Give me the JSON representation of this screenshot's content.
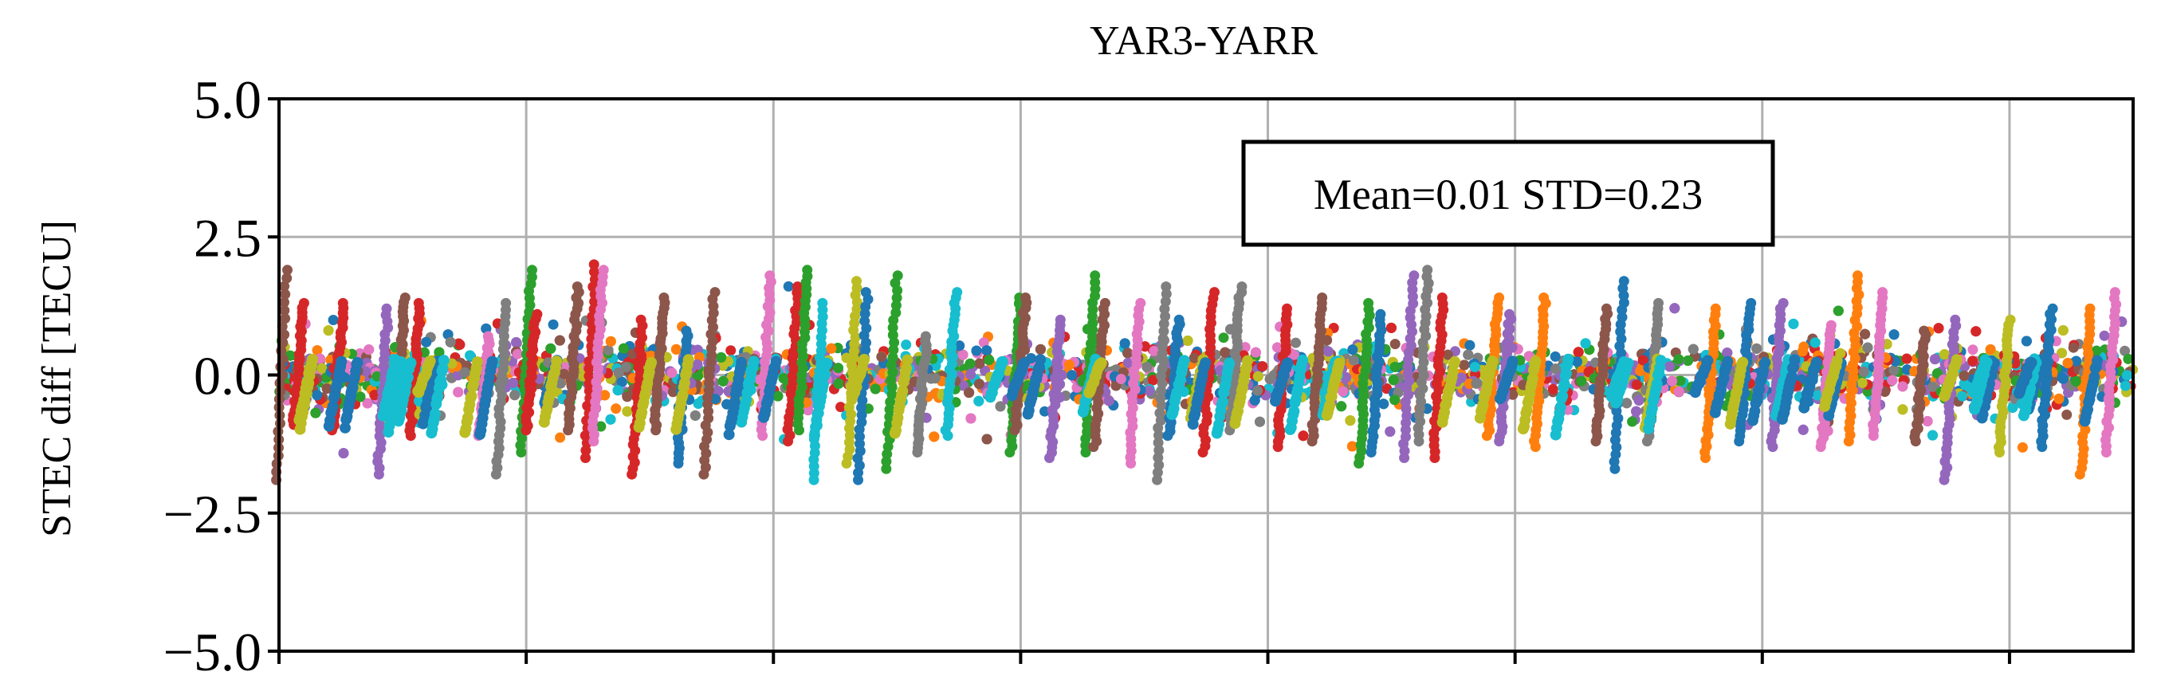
{
  "chart_data": {
    "type": "scatter",
    "title": "YAR3-YARR",
    "xlabel": "",
    "ylabel": "STEC diff [TECU]",
    "ylim": [
      -5.0,
      5.0
    ],
    "yticks": [
      5.0,
      2.5,
      0.0,
      -2.5,
      -5.0
    ],
    "ytick_labels": [
      "5.0",
      "2.5",
      "0.0",
      "−2.5",
      "−5.0"
    ],
    "xlim": [
      0,
      7.5
    ],
    "xticks": [
      0,
      1,
      2,
      3,
      4,
      5,
      6,
      7
    ],
    "xtick_labels": [
      "",
      "",
      "",
      "",
      "",
      "",
      "",
      ""
    ],
    "grid": true,
    "annotation": "Mean=0.01 STD=0.23",
    "annotation_placement": "upper-right",
    "series_colors": [
      "#1f77b4",
      "#ff7f0e",
      "#2ca02c",
      "#d62728",
      "#9467bd",
      "#8c564b",
      "#e377c2",
      "#7f7f7f",
      "#bcbd22",
      "#17becf"
    ],
    "series_note": "",
    "spikes": [
      {
        "x": 0.01,
        "lo": -1.9,
        "hi": 1.9,
        "color": "#8c564b"
      },
      {
        "x": 0.08,
        "lo": -0.9,
        "hi": 1.3,
        "color": "#d62728"
      },
      {
        "x": 0.24,
        "lo": -1.0,
        "hi": 1.3,
        "color": "#d62728"
      },
      {
        "x": 0.42,
        "lo": -1.8,
        "hi": 1.2,
        "color": "#9467bd"
      },
      {
        "x": 0.49,
        "lo": -0.8,
        "hi": 1.4,
        "color": "#8c564b"
      },
      {
        "x": 0.55,
        "lo": -1.1,
        "hi": 1.3,
        "color": "#d62728"
      },
      {
        "x": 0.83,
        "lo": -1.1,
        "hi": 0.7,
        "color": "#e377c2"
      },
      {
        "x": 0.9,
        "lo": -1.8,
        "hi": 1.3,
        "color": "#7f7f7f"
      },
      {
        "x": 1.0,
        "lo": -1.4,
        "hi": 1.9,
        "color": "#2ca02c"
      },
      {
        "x": 1.02,
        "lo": -1.0,
        "hi": 1.1,
        "color": "#d62728"
      },
      {
        "x": 1.19,
        "lo": -1.0,
        "hi": 1.6,
        "color": "#8c564b"
      },
      {
        "x": 1.26,
        "lo": -1.5,
        "hi": 2.0,
        "color": "#d62728"
      },
      {
        "x": 1.29,
        "lo": -1.2,
        "hi": 1.9,
        "color": "#e377c2"
      },
      {
        "x": 1.45,
        "lo": -1.8,
        "hi": 1.0,
        "color": "#d62728"
      },
      {
        "x": 1.54,
        "lo": -1.0,
        "hi": 1.4,
        "color": "#8c564b"
      },
      {
        "x": 1.63,
        "lo": -1.6,
        "hi": 0.8,
        "color": "#1f77b4"
      },
      {
        "x": 1.74,
        "lo": -1.8,
        "hi": 1.5,
        "color": "#8c564b"
      },
      {
        "x": 1.97,
        "lo": -1.1,
        "hi": 1.8,
        "color": "#e377c2"
      },
      {
        "x": 2.08,
        "lo": -1.2,
        "hi": 1.6,
        "color": "#d62728"
      },
      {
        "x": 2.12,
        "lo": -1.0,
        "hi": 1.9,
        "color": "#2ca02c"
      },
      {
        "x": 2.18,
        "lo": -1.9,
        "hi": 1.3,
        "color": "#17becf"
      },
      {
        "x": 2.32,
        "lo": -1.6,
        "hi": 1.7,
        "color": "#bcbd22"
      },
      {
        "x": 2.36,
        "lo": -1.9,
        "hi": 1.5,
        "color": "#1f77b4"
      },
      {
        "x": 2.48,
        "lo": -1.7,
        "hi": 1.8,
        "color": "#2ca02c"
      },
      {
        "x": 2.6,
        "lo": -1.4,
        "hi": 0.7,
        "color": "#7f7f7f"
      },
      {
        "x": 2.72,
        "lo": -1.1,
        "hi": 1.5,
        "color": "#17becf"
      },
      {
        "x": 2.98,
        "lo": -1.4,
        "hi": 1.4,
        "color": "#2ca02c"
      },
      {
        "x": 3.0,
        "lo": -1.0,
        "hi": 1.4,
        "color": "#8c564b"
      },
      {
        "x": 3.14,
        "lo": -1.5,
        "hi": 1.0,
        "color": "#9467bd"
      },
      {
        "x": 3.28,
        "lo": -1.4,
        "hi": 1.8,
        "color": "#2ca02c"
      },
      {
        "x": 3.32,
        "lo": -1.3,
        "hi": 1.3,
        "color": "#8c564b"
      },
      {
        "x": 3.46,
        "lo": -1.6,
        "hi": 1.3,
        "color": "#e377c2"
      },
      {
        "x": 3.57,
        "lo": -1.9,
        "hi": 1.6,
        "color": "#7f7f7f"
      },
      {
        "x": 3.62,
        "lo": -1.1,
        "hi": 1.0,
        "color": "#1f77b4"
      },
      {
        "x": 3.76,
        "lo": -1.4,
        "hi": 1.5,
        "color": "#d62728"
      },
      {
        "x": 3.87,
        "lo": -1.0,
        "hi": 1.6,
        "color": "#7f7f7f"
      },
      {
        "x": 4.06,
        "lo": -1.3,
        "hi": 1.2,
        "color": "#d62728"
      },
      {
        "x": 4.2,
        "lo": -1.2,
        "hi": 1.4,
        "color": "#8c564b"
      },
      {
        "x": 4.39,
        "lo": -1.6,
        "hi": 1.3,
        "color": "#2ca02c"
      },
      {
        "x": 4.44,
        "lo": -1.4,
        "hi": 1.1,
        "color": "#1f77b4"
      },
      {
        "x": 4.57,
        "lo": -1.5,
        "hi": 1.8,
        "color": "#9467bd"
      },
      {
        "x": 4.63,
        "lo": -1.2,
        "hi": 1.9,
        "color": "#7f7f7f"
      },
      {
        "x": 4.69,
        "lo": -1.5,
        "hi": 1.4,
        "color": "#d62728"
      },
      {
        "x": 4.91,
        "lo": -1.1,
        "hi": 1.4,
        "color": "#ff7f0e"
      },
      {
        "x": 4.96,
        "lo": -1.2,
        "hi": 1.1,
        "color": "#9467bd"
      },
      {
        "x": 5.1,
        "lo": -1.3,
        "hi": 1.4,
        "color": "#ff7f0e"
      },
      {
        "x": 5.35,
        "lo": -1.2,
        "hi": 1.2,
        "color": "#8c564b"
      },
      {
        "x": 5.42,
        "lo": -1.7,
        "hi": 1.7,
        "color": "#1f77b4"
      },
      {
        "x": 5.56,
        "lo": -1.2,
        "hi": 1.3,
        "color": "#7f7f7f"
      },
      {
        "x": 5.79,
        "lo": -1.5,
        "hi": 1.2,
        "color": "#ff7f0e"
      },
      {
        "x": 5.93,
        "lo": -1.2,
        "hi": 1.3,
        "color": "#1f77b4"
      },
      {
        "x": 6.06,
        "lo": -1.3,
        "hi": 1.3,
        "color": "#9467bd"
      },
      {
        "x": 6.26,
        "lo": -1.3,
        "hi": 0.9,
        "color": "#e377c2"
      },
      {
        "x": 6.37,
        "lo": -1.2,
        "hi": 1.8,
        "color": "#ff7f0e"
      },
      {
        "x": 6.47,
        "lo": -1.1,
        "hi": 1.5,
        "color": "#e377c2"
      },
      {
        "x": 6.64,
        "lo": -1.2,
        "hi": 0.8,
        "color": "#8c564b"
      },
      {
        "x": 6.76,
        "lo": -1.9,
        "hi": 1.0,
        "color": "#9467bd"
      },
      {
        "x": 6.98,
        "lo": -1.4,
        "hi": 1.0,
        "color": "#bcbd22"
      },
      {
        "x": 7.15,
        "lo": -1.3,
        "hi": 1.2,
        "color": "#1f77b4"
      },
      {
        "x": 7.31,
        "lo": -1.8,
        "hi": 1.2,
        "color": "#ff7f0e"
      },
      {
        "x": 7.41,
        "lo": -1.4,
        "hi": 1.5,
        "color": "#e377c2"
      }
    ]
  }
}
